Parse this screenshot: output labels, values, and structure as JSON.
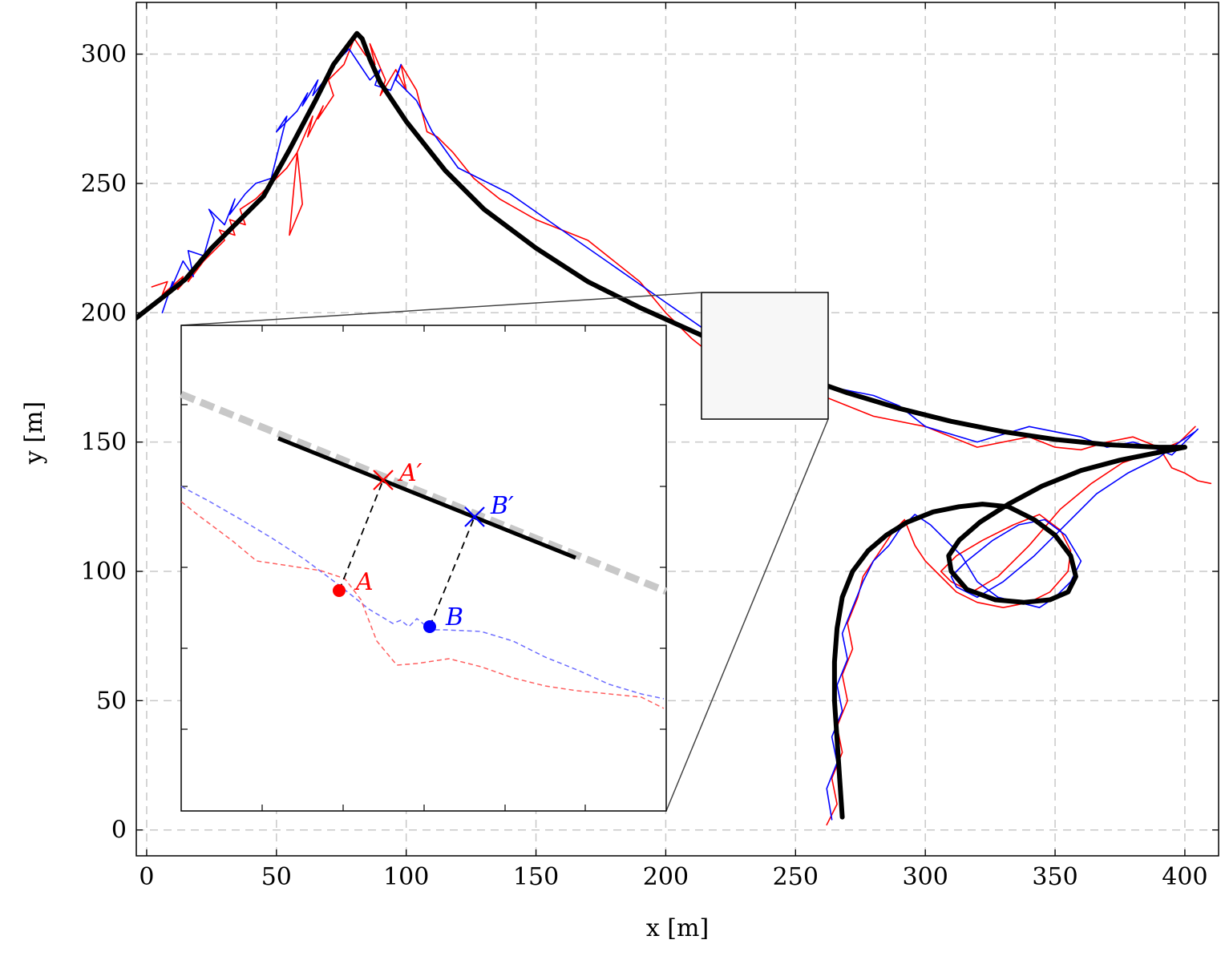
{
  "chart_data": {
    "type": "line",
    "xlabel": "x [m]",
    "ylabel": "y [m]",
    "xlim": [
      -4,
      413
    ],
    "ylim": [
      -10,
      320
    ],
    "xticks": [
      0,
      50,
      100,
      150,
      200,
      250,
      300,
      350,
      400
    ],
    "yticks": [
      0,
      50,
      100,
      150,
      200,
      250,
      300
    ],
    "grid": true,
    "colors": {
      "reference": "#000000",
      "red": "#ff0000",
      "blue": "#0000ff",
      "inset_road": "#c8c8c8",
      "zoom_box_fill": "#f7f7f7"
    },
    "series": [
      {
        "color": "#000000",
        "style": "thick",
        "x": [
          -4,
          5,
          15,
          25,
          35,
          45,
          55,
          65,
          72,
          78,
          81,
          83,
          86,
          90,
          100,
          115,
          130,
          150,
          170,
          190,
          210,
          230,
          250,
          270,
          290,
          310,
          330,
          350,
          370,
          390,
          400
        ],
        "y": [
          198,
          205,
          213,
          225,
          235,
          245,
          263,
          282,
          296,
          304,
          308,
          306,
          298,
          289,
          274,
          255,
          240,
          225,
          212,
          202,
          193,
          184,
          176,
          169,
          163,
          158,
          154,
          151,
          149,
          148,
          148
        ]
      },
      {
        "color": "#000000",
        "style": "thick",
        "x": [
          268,
          267,
          266,
          265,
          265,
          266,
          268,
          272,
          278,
          285,
          293,
          303,
          313,
          322,
          332,
          342,
          350,
          356,
          358,
          355,
          348,
          338,
          327,
          316,
          310,
          309,
          313,
          321,
          332,
          345,
          360,
          375,
          390,
          400
        ],
        "y": [
          5,
          20,
          35,
          50,
          65,
          78,
          90,
          100,
          108,
          114,
          119,
          123,
          125,
          126,
          125,
          120,
          114,
          106,
          98,
          92,
          89,
          88,
          89,
          93,
          100,
          106,
          112,
          119,
          126,
          133,
          139,
          143,
          146,
          148
        ]
      },
      {
        "color": "#ff0000",
        "style": "thin",
        "x": [
          2,
          8,
          6,
          14,
          12,
          18,
          16,
          22,
          26,
          30,
          28,
          34,
          32,
          38,
          36,
          42,
          46,
          50,
          54,
          58,
          55,
          60,
          58,
          64,
          62,
          68,
          66,
          72,
          70,
          76,
          80,
          84,
          88,
          86,
          92,
          90,
          96,
          100,
          98,
          104,
          108,
          112,
          118,
          126,
          136,
          150,
          170,
          190,
          200,
          210,
          220,
          240,
          260,
          280,
          300,
          320,
          340,
          350,
          360,
          370,
          380,
          390,
          395,
          400,
          405,
          410
        ],
        "y": [
          210,
          212,
          207,
          214,
          209,
          216,
          212,
          220,
          224,
          228,
          232,
          230,
          236,
          234,
          240,
          244,
          248,
          252,
          256,
          262,
          230,
          242,
          262,
          276,
          268,
          280,
          275,
          284,
          290,
          296,
          306,
          300,
          296,
          304,
          290,
          284,
          294,
          286,
          296,
          286,
          270,
          268,
          262,
          252,
          244,
          236,
          228,
          212,
          200,
          190,
          182,
          172,
          168,
          160,
          156,
          148,
          152,
          148,
          147,
          150,
          152,
          148,
          140,
          138,
          135,
          134
        ]
      },
      {
        "color": "#0000ff",
        "style": "thin",
        "x": [
          6,
          10,
          8,
          14,
          18,
          16,
          22,
          26,
          24,
          30,
          34,
          32,
          38,
          42,
          48,
          54,
          50,
          58,
          62,
          60,
          66,
          64,
          70,
          74,
          78,
          82,
          86,
          90,
          88,
          94,
          98,
          96,
          104,
          110,
          120,
          140,
          160,
          180,
          200,
          220,
          240,
          260,
          270,
          280,
          290,
          300,
          320,
          340,
          360,
          370,
          380,
          390,
          395,
          400,
          405
        ],
        "y": [
          200,
          212,
          206,
          220,
          214,
          224,
          222,
          236,
          240,
          234,
          244,
          238,
          246,
          250,
          252,
          276,
          270,
          278,
          285,
          280,
          290,
          284,
          292,
          298,
          302,
          296,
          290,
          294,
          288,
          286,
          296,
          290,
          282,
          270,
          256,
          246,
          232,
          218,
          204,
          190,
          178,
          172,
          170,
          168,
          164,
          156,
          150,
          156,
          152,
          148,
          150,
          147,
          145,
          150,
          155
        ]
      },
      {
        "color": "#ff0000",
        "style": "thin",
        "x": [
          262,
          266,
          264,
          268,
          266,
          270,
          268,
          272,
          270,
          274,
          276,
          280,
          284,
          288,
          292,
          296,
          300,
          306,
          312,
          320,
          330,
          340,
          348,
          355,
          356,
          352,
          344,
          334,
          322,
          312,
          306,
          310,
          318,
          328,
          340,
          352,
          364,
          376,
          388,
          398,
          404
        ],
        "y": [
          2,
          10,
          20,
          30,
          40,
          50,
          60,
          70,
          80,
          90,
          98,
          104,
          110,
          116,
          120,
          110,
          104,
          98,
          92,
          88,
          86,
          88,
          92,
          100,
          108,
          116,
          122,
          118,
          112,
          106,
          100,
          96,
          92,
          98,
          110,
          124,
          134,
          142,
          146,
          150,
          156
        ]
      },
      {
        "color": "#0000ff",
        "style": "thin",
        "x": [
          264,
          262,
          266,
          264,
          268,
          266,
          270,
          268,
          272,
          276,
          280,
          286,
          290,
          296,
          302,
          308,
          314,
          320,
          328,
          336,
          344,
          350,
          356,
          360,
          354,
          346,
          336,
          326,
          316,
          310,
          312,
          320,
          330,
          342,
          354,
          366,
          378,
          390,
          398,
          404
        ],
        "y": [
          4,
          16,
          26,
          36,
          46,
          56,
          66,
          76,
          86,
          96,
          104,
          110,
          116,
          122,
          118,
          112,
          106,
          96,
          90,
          88,
          86,
          90,
          96,
          104,
          114,
          120,
          118,
          112,
          104,
          98,
          94,
          90,
          96,
          106,
          118,
          130,
          138,
          144,
          150,
          154
        ]
      }
    ],
    "inset": {
      "labels": {
        "A": "A",
        "A_prime": "A′",
        "B": "B",
        "B_prime": "B′"
      }
    }
  }
}
